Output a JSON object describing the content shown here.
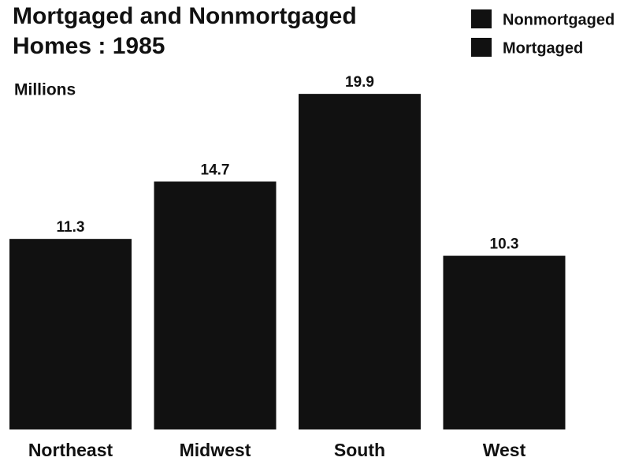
{
  "chart_data": {
    "type": "bar",
    "title": [
      "Mortgaged and Nonmortgaged",
      "Homes : 1985"
    ],
    "unit_label": "Millions",
    "legend": [
      {
        "name": "Nonmortgaged",
        "color": "#111111"
      },
      {
        "name": "Mortgaged",
        "color": "#111111"
      }
    ],
    "categories": [
      "Northeast",
      "Midwest",
      "South",
      "West"
    ],
    "values": [
      11.3,
      14.7,
      19.9,
      10.3
    ],
    "color": "#111111"
  }
}
